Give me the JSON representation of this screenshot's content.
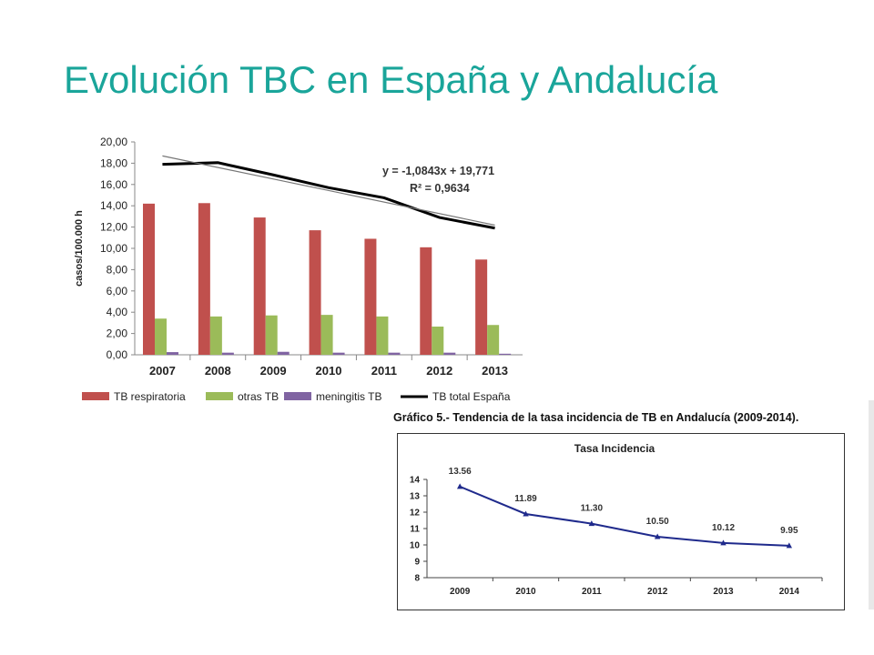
{
  "slide": {
    "title": "Evolución TBC en España y Andalucía"
  },
  "chart_data": [
    {
      "type": "bar",
      "title": "",
      "xlabel": "",
      "ylabel": "casos/100.000 h",
      "categories": [
        "2007",
        "2008",
        "2009",
        "2010",
        "2011",
        "2012",
        "2013"
      ],
      "yticks": [
        "0,00",
        "2,00",
        "4,00",
        "6,00",
        "8,00",
        "10,00",
        "12,00",
        "14,00",
        "16,00",
        "18,00",
        "20,00"
      ],
      "ylim": [
        0,
        20
      ],
      "grid": false,
      "legend_position": "bottom",
      "series": [
        {
          "name": "TB respiratoria",
          "type": "bar",
          "color": "#c0504d",
          "values": [
            14.2,
            14.25,
            12.9,
            11.7,
            10.9,
            10.1,
            8.95
          ]
        },
        {
          "name": "otras TB",
          "type": "bar",
          "color": "#9bbb59",
          "values": [
            3.4,
            3.6,
            3.7,
            3.75,
            3.6,
            2.65,
            2.8
          ]
        },
        {
          "name": "meningitis TB",
          "type": "bar",
          "color": "#8064a2",
          "values": [
            0.25,
            0.2,
            0.28,
            0.2,
            0.2,
            0.2,
            0.1
          ]
        },
        {
          "name": "TB total España",
          "type": "line",
          "color": "#000000",
          "values": [
            17.9,
            18.05,
            16.9,
            15.7,
            14.75,
            12.9,
            11.9
          ]
        }
      ],
      "trendline": {
        "equation": "y = -1,0843x + 19,771",
        "r2": "R² = 0,9634",
        "slope": -1.0843,
        "intercept": 19.771
      }
    },
    {
      "type": "line",
      "caption": "Gráfico 5.- Tendencia de la tasa incidencia de TB en Andalucía (2009-2014).",
      "title": "Tasa Incidencia",
      "xlabel": "",
      "ylabel": "",
      "x": [
        "2009",
        "2010",
        "2011",
        "2012",
        "2013",
        "2014"
      ],
      "yticks": [
        "8",
        "9",
        "10",
        "11",
        "12",
        "13",
        "14"
      ],
      "ylim": [
        8,
        14
      ],
      "grid": false,
      "series": [
        {
          "color": "#1f2a8c",
          "values": [
            13.56,
            11.89,
            11.3,
            10.5,
            10.12,
            9.95
          ],
          "labels": [
            "13.56",
            "11.89",
            "11.30",
            "10.50",
            "10.12",
            "9.95"
          ]
        }
      ]
    }
  ]
}
